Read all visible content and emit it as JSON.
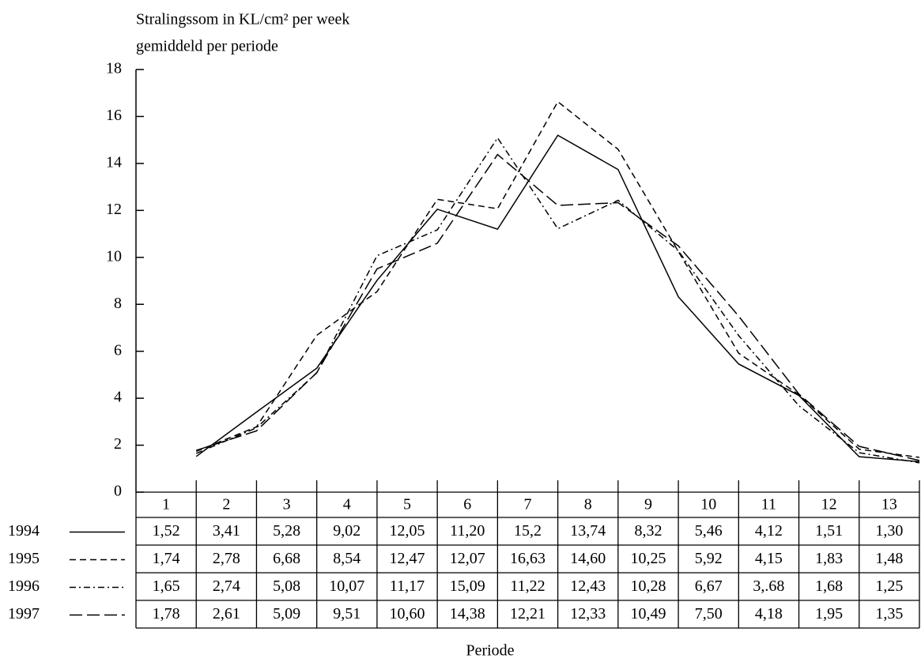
{
  "chart_data": {
    "type": "line",
    "ylabel_lines": [
      "Stralingssom in KL/cm² per week",
      "gemiddeld per periode"
    ],
    "xlabel": "Periode",
    "categories": [
      "1",
      "2",
      "3",
      "4",
      "5",
      "6",
      "7",
      "8",
      "9",
      "10",
      "11",
      "12",
      "13"
    ],
    "ylim": [
      0,
      18
    ],
    "yticks": [
      0,
      2,
      4,
      6,
      8,
      10,
      12,
      14,
      16,
      18
    ],
    "series": [
      {
        "name": "1994",
        "color": "#000000",
        "linestyle": "solid",
        "values": [
          1.52,
          3.41,
          5.28,
          9.02,
          12.05,
          11.2,
          15.2,
          13.74,
          8.32,
          5.46,
          4.12,
          1.51,
          1.3
        ],
        "value_labels": [
          "1,52",
          "3,41",
          "5,28",
          "9,02",
          "12,05",
          "11,20",
          "15,2",
          "13,74",
          "8,32",
          "5,46",
          "4,12",
          "1,51",
          "1,30"
        ]
      },
      {
        "name": "1995",
        "color": "#000000",
        "linestyle": "dashed",
        "values": [
          1.74,
          2.78,
          6.68,
          8.54,
          12.47,
          12.07,
          16.63,
          14.6,
          10.25,
          5.92,
          4.15,
          1.83,
          1.48
        ],
        "value_labels": [
          "1,74",
          "2,78",
          "6,68",
          "8,54",
          "12,47",
          "12,07",
          "16,63",
          "14,60",
          "10,25",
          "5,92",
          "4,15",
          "1,83",
          "1,48"
        ]
      },
      {
        "name": "1996",
        "color": "#000000",
        "linestyle": "dashdot",
        "values": [
          1.65,
          2.74,
          5.08,
          10.07,
          11.17,
          15.09,
          11.22,
          12.43,
          10.28,
          6.67,
          3.68,
          1.68,
          1.25
        ],
        "value_labels": [
          "1,65",
          "2,74",
          "5,08",
          "10,07",
          "11,17",
          "15,09",
          "11,22",
          "12,43",
          "10,28",
          "6,67",
          "3,.68",
          "1,68",
          "1,25"
        ]
      },
      {
        "name": "1997",
        "color": "#000000",
        "linestyle": "longdash",
        "values": [
          1.78,
          2.61,
          5.09,
          9.51,
          10.6,
          14.38,
          12.21,
          12.33,
          10.49,
          7.5,
          4.18,
          1.95,
          1.35
        ],
        "value_labels": [
          "1,78",
          "2,61",
          "5,09",
          "9,51",
          "10,60",
          "14,38",
          "12,21",
          "12,33",
          "10,49",
          "7,50",
          "4,18",
          "1,95",
          "1,35"
        ]
      }
    ]
  }
}
